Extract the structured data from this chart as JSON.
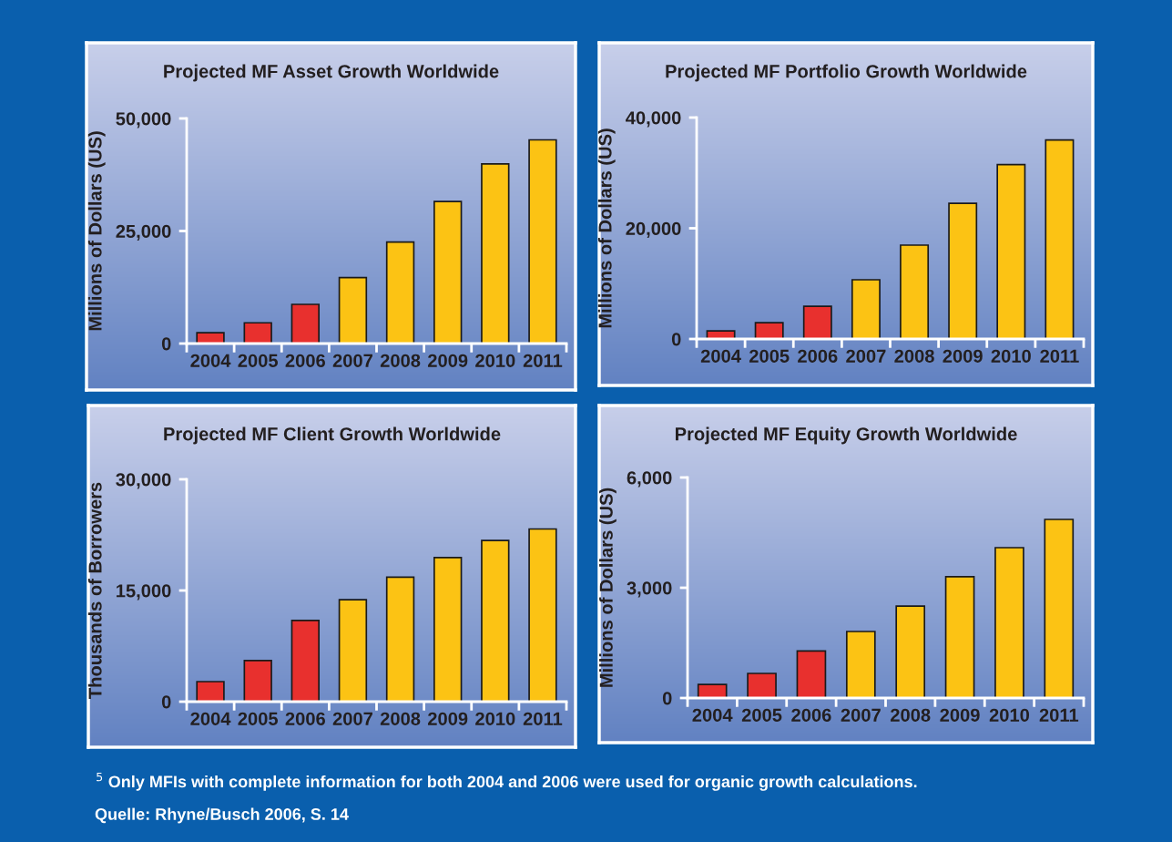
{
  "chart_data": [
    {
      "type": "bar",
      "title": "Projected MF Asset Growth Worldwide",
      "ylabel": "Millions of Dollars (US)",
      "categories": [
        "2004",
        "2005",
        "2006",
        "2007",
        "2008",
        "2009",
        "2010",
        "2011"
      ],
      "values": [
        2400,
        4600,
        8700,
        14650,
        22550,
        31550,
        39900,
        45250
      ],
      "colors": [
        "#e8302e",
        "#e8302e",
        "#e8302e",
        "#fcc314",
        "#fcc314",
        "#fcc314",
        "#fcc314",
        "#fcc314"
      ],
      "ylim": [
        0,
        50000
      ],
      "yticks": [
        {
          "value": 0,
          "label": "0"
        },
        {
          "value": 25000,
          "label": "25,000"
        },
        {
          "value": 50000,
          "label": "50,000"
        }
      ],
      "grid": false,
      "legend": false
    },
    {
      "type": "bar",
      "title": "Projected MF Portfolio Growth Worldwide",
      "ylabel": "Millions of Dollars (US)",
      "categories": [
        "2004",
        "2005",
        "2006",
        "2007",
        "2008",
        "2009",
        "2010",
        "2011"
      ],
      "values": [
        1460,
        2930,
        5900,
        10700,
        16950,
        24500,
        31500,
        35950
      ],
      "colors": [
        "#e8302e",
        "#e8302e",
        "#e8302e",
        "#fcc314",
        "#fcc314",
        "#fcc314",
        "#fcc314",
        "#fcc314"
      ],
      "ylim": [
        0,
        40000
      ],
      "yticks": [
        {
          "value": 0,
          "label": "0"
        },
        {
          "value": 20000,
          "label": "20,000"
        },
        {
          "value": 40000,
          "label": "40,000"
        }
      ],
      "grid": false,
      "legend": false
    },
    {
      "type": "bar",
      "title": "Projected MF Client Growth Worldwide",
      "ylabel": "Thousands of Borrowers",
      "categories": [
        "2004",
        "2005",
        "2006",
        "2007",
        "2008",
        "2009",
        "2010",
        "2011"
      ],
      "values": [
        2700,
        5550,
        10950,
        13750,
        16800,
        19450,
        21750,
        23300
      ],
      "colors": [
        "#e8302e",
        "#e8302e",
        "#e8302e",
        "#fcc314",
        "#fcc314",
        "#fcc314",
        "#fcc314",
        "#fcc314"
      ],
      "ylim": [
        0,
        30000
      ],
      "yticks": [
        {
          "value": 0,
          "label": "0"
        },
        {
          "value": 15000,
          "label": "15,000"
        },
        {
          "value": 30000,
          "label": "30,000"
        }
      ],
      "grid": false,
      "legend": false
    },
    {
      "type": "bar",
      "title": "Projected MF Equity Growth Worldwide",
      "ylabel": "Millions of Dollars (US)",
      "categories": [
        "2004",
        "2005",
        "2006",
        "2007",
        "2008",
        "2009",
        "2010",
        "2011"
      ],
      "values": [
        370,
        670,
        1280,
        1810,
        2500,
        3300,
        4090,
        4860
      ],
      "colors": [
        "#e8302e",
        "#e8302e",
        "#e8302e",
        "#fcc314",
        "#fcc314",
        "#fcc314",
        "#fcc314",
        "#fcc314"
      ],
      "ylim": [
        0,
        6000
      ],
      "yticks": [
        {
          "value": 0,
          "label": "0"
        },
        {
          "value": 3000,
          "label": "3,000"
        },
        {
          "value": 6000,
          "label": "6,000"
        }
      ],
      "grid": false,
      "legend": false,
      "annotations": [
        "$^{5}$ Only MFIs with complete information for both 2004 and 2006 were used for organic growth calculations.",
        "Quelle: Rhyne/Busch 2006, S. 14"
      ]
    }
  ]
}
